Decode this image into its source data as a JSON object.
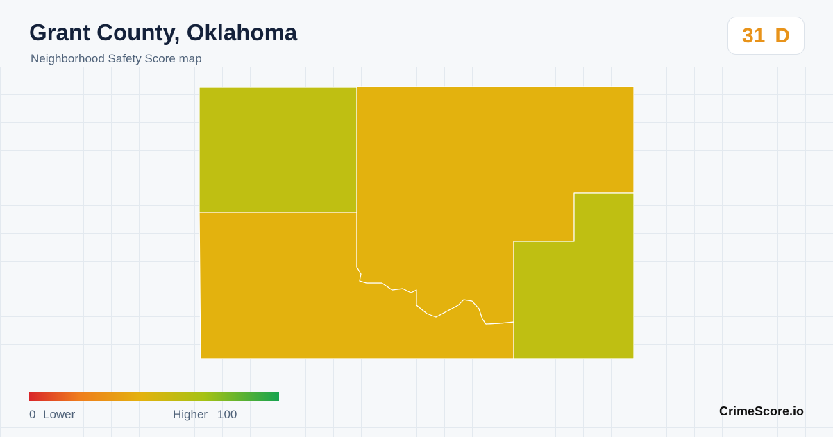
{
  "header": {
    "title": "Grant County, Oklahoma",
    "subtitle": "Neighborhood Safety Score map"
  },
  "score": {
    "value": "31",
    "grade": "D"
  },
  "legend": {
    "min": "0",
    "min_label": "Lower",
    "max_label": "Higher",
    "max": "100"
  },
  "brand": "CrimeScore.io"
}
